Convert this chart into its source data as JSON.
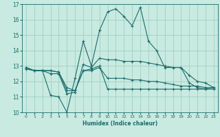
{
  "xlabel": "Humidex (Indice chaleur)",
  "ylabel": "",
  "xlim": [
    -0.5,
    23.5
  ],
  "ylim": [
    10,
    17
  ],
  "yticks": [
    10,
    11,
    12,
    13,
    14,
    15,
    16,
    17
  ],
  "xticks": [
    0,
    1,
    2,
    3,
    4,
    5,
    6,
    7,
    8,
    9,
    10,
    11,
    12,
    13,
    14,
    15,
    16,
    17,
    18,
    19,
    20,
    21,
    22,
    23
  ],
  "bg_color": "#c8eae0",
  "grid_color": "#a0cfc4",
  "line_color": "#1a6b6b",
  "lines": [
    {
      "x": [
        0,
        1,
        2,
        3,
        4,
        5,
        6,
        7,
        8,
        9,
        10,
        11,
        12,
        13,
        14,
        15,
        16,
        17,
        18,
        19,
        20,
        21,
        22,
        23
      ],
      "y": [
        12.8,
        12.7,
        12.7,
        11.1,
        11.0,
        10.0,
        12.2,
        14.6,
        13.0,
        15.3,
        16.5,
        16.7,
        16.2,
        15.6,
        16.8,
        14.6,
        14.0,
        12.9,
        12.9,
        12.9,
        11.9,
        11.6,
        11.5,
        11.5
      ]
    },
    {
      "x": [
        0,
        1,
        2,
        3,
        4,
        5,
        6,
        7,
        8,
        9,
        10,
        11,
        12,
        13,
        14,
        15,
        16,
        17,
        18,
        19,
        20,
        21,
        22,
        23
      ],
      "y": [
        12.9,
        12.7,
        12.7,
        12.5,
        12.5,
        11.2,
        11.3,
        13.1,
        12.9,
        13.5,
        13.4,
        13.4,
        13.3,
        13.3,
        13.3,
        13.2,
        13.1,
        13.0,
        12.9,
        12.9,
        12.4,
        12.0,
        11.9,
        11.6
      ]
    },
    {
      "x": [
        0,
        1,
        2,
        3,
        4,
        5,
        6,
        7,
        8,
        9,
        10,
        11,
        12,
        13,
        14,
        15,
        16,
        17,
        18,
        19,
        20,
        21,
        22,
        23
      ],
      "y": [
        12.9,
        12.7,
        12.7,
        12.7,
        12.6,
        11.4,
        11.4,
        12.7,
        12.7,
        12.9,
        12.2,
        12.2,
        12.2,
        12.1,
        12.1,
        12.0,
        12.0,
        11.9,
        11.8,
        11.7,
        11.7,
        11.7,
        11.6,
        11.6
      ]
    },
    {
      "x": [
        0,
        1,
        2,
        3,
        4,
        5,
        6,
        7,
        8,
        9,
        10,
        11,
        12,
        13,
        14,
        15,
        16,
        17,
        18,
        19,
        20,
        21,
        22,
        23
      ],
      "y": [
        12.9,
        12.7,
        12.7,
        12.7,
        12.6,
        11.6,
        11.4,
        12.7,
        12.8,
        13.0,
        11.5,
        11.5,
        11.5,
        11.5,
        11.5,
        11.5,
        11.5,
        11.5,
        11.5,
        11.5,
        11.5,
        11.5,
        11.5,
        11.6
      ]
    }
  ]
}
